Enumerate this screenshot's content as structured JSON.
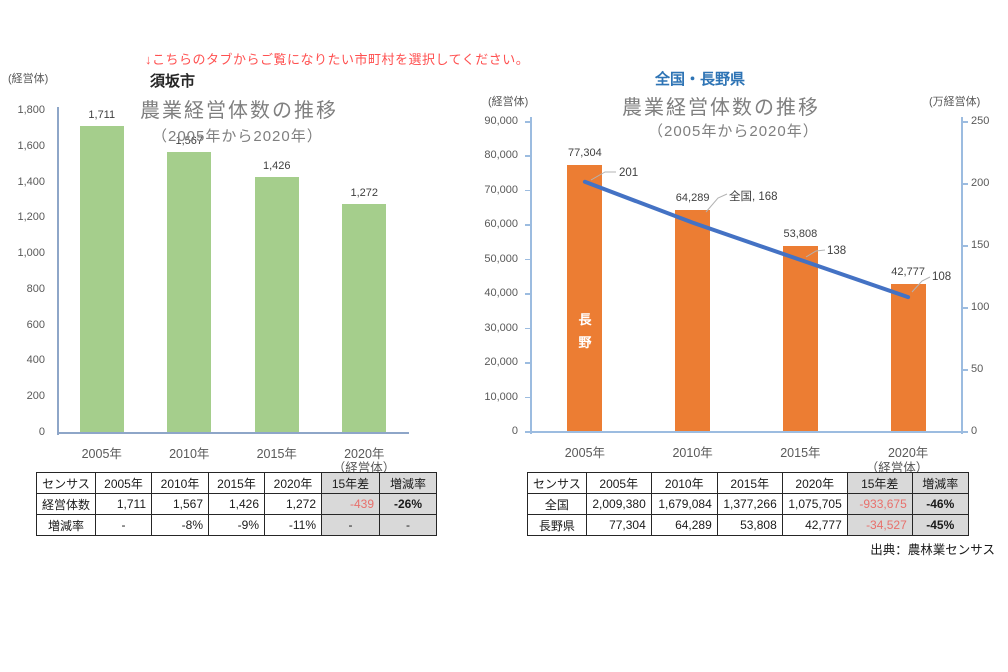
{
  "banner": {
    "text": "↓こちらのタブからご覧になりたい市町村を選択してください。"
  },
  "source_note": "出典：農林業センサス",
  "colors": {
    "banner_red": "#ff5050",
    "green_bar": "#a5ce8c",
    "orange_bar": "#ec7d33",
    "line_blue": "#4472c4",
    "region_title_blue": "#2e74b5",
    "negative_red": "#e8706c",
    "table_gray": "#d9d9d9",
    "axis_blue": "#9cbce0"
  },
  "chart_data": [
    {
      "type": "bar",
      "region_label": "須坂市",
      "title": "農業経営体数の推移",
      "subtitle": "（2005年から2020年）",
      "y_axis_unit": "(経営体)",
      "x_axis_unit": "（経営体）",
      "categories": [
        "2005年",
        "2010年",
        "2015年",
        "2020年"
      ],
      "values": [
        1711,
        1567,
        1426,
        1272
      ],
      "value_labels": [
        "1,711",
        "1,567",
        "1,426",
        "1,272"
      ],
      "ylim": [
        0,
        1800
      ],
      "ytick_step": 200,
      "ytick_labels": [
        "1,800",
        "1,600",
        "1,400",
        "1,200",
        "1,000",
        "800",
        "600",
        "400",
        "200",
        "0"
      ],
      "bar_color": "#a5ce8c",
      "grid": false,
      "legend": "none"
    },
    {
      "type": "bar+line",
      "region_label": "全国・長野県",
      "title": "農業経営体数の推移",
      "subtitle": "（2005年から2020年）",
      "y_axis_unit_left": "(経営体)",
      "y_axis_unit_right": "(万経営体)",
      "x_axis_unit": "（経営体）",
      "categories": [
        "2005年",
        "2010年",
        "2015年",
        "2020年"
      ],
      "series": [
        {
          "name": "長野",
          "type": "bar",
          "axis": "left",
          "values": [
            77304,
            64289,
            53808,
            42777
          ],
          "value_labels": [
            "77,304",
            "64,289",
            "53,808",
            "42,777"
          ],
          "color": "#ec7d33",
          "in_bar_label": "長野"
        },
        {
          "name": "全国",
          "type": "line",
          "axis": "right",
          "values": [
            201,
            168,
            138,
            108
          ],
          "point_labels": [
            "201",
            "全国, 168",
            "138",
            "108"
          ],
          "color": "#4472c4"
        }
      ],
      "ylim_left": [
        0,
        90000
      ],
      "ylim_right": [
        0,
        250
      ],
      "ytick_labels_left": [
        "90,000",
        "80,000",
        "70,000",
        "60,000",
        "50,000",
        "40,000",
        "30,000",
        "20,000",
        "10,000",
        "0"
      ],
      "ytick_labels_right": [
        "250",
        "200",
        "150",
        "100",
        "50",
        "0"
      ],
      "grid": false,
      "legend": "none"
    }
  ],
  "tables": {
    "left": {
      "headers": [
        "センサス",
        "2005年",
        "2010年",
        "2015年",
        "2020年",
        "15年差",
        "増減率"
      ],
      "rows": [
        {
          "label": "経営体数",
          "cells": [
            "1,711",
            "1,567",
            "1,426",
            "1,272",
            "-439",
            "-26%"
          ]
        },
        {
          "label": "増減率",
          "cells": [
            "-",
            "-8%",
            "-9%",
            "-11%",
            "-",
            "-"
          ]
        }
      ]
    },
    "right": {
      "headers": [
        "センサス",
        "2005年",
        "2010年",
        "2015年",
        "2020年",
        "15年差",
        "増減率"
      ],
      "rows": [
        {
          "label": "全国",
          "cells": [
            "2,009,380",
            "1,679,084",
            "1,377,266",
            "1,075,705",
            "-933,675",
            "-46%"
          ]
        },
        {
          "label": "長野県",
          "cells": [
            "77,304",
            "64,289",
            "53,808",
            "42,777",
            "-34,527",
            "-45%"
          ]
        }
      ]
    }
  }
}
